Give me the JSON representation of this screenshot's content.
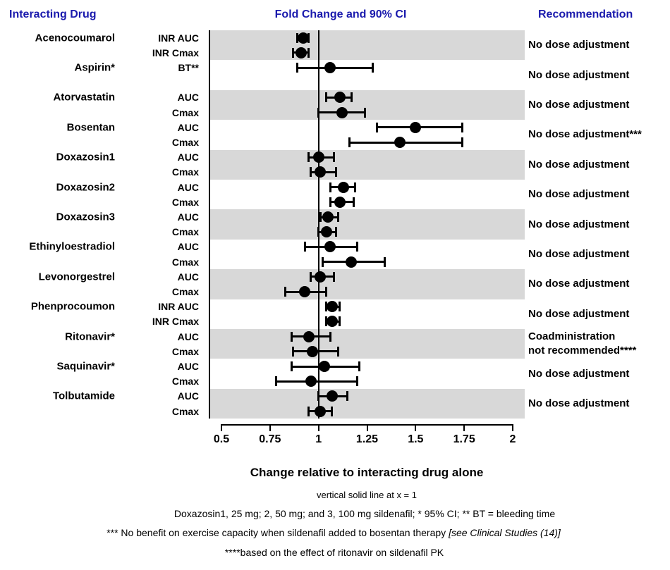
{
  "header": {
    "col_interacting_drug": "Interacting Drug",
    "col_fold_change": "Fold Change and 90% CI",
    "col_recommendation": "Recommendation"
  },
  "colors": {
    "header_blue": "#1a1aad",
    "band_gray": "#d8d8d8",
    "band_white": "#ffffff",
    "marker_black": "#000000"
  },
  "chart_data": {
    "type": "forest",
    "title": "Fold Change and 90% CI",
    "xlabel": "Change relative to interacting drug alone",
    "x_axis": {
      "range": [
        0.5,
        2
      ],
      "ticks": [
        0.5,
        0.75,
        1,
        1.25,
        1.5,
        1.75,
        2
      ],
      "tick_labels": [
        "0.5",
        "0.75",
        "1",
        "1.25",
        "1.5",
        "1.75",
        "2"
      ],
      "reference_line_x": 1
    },
    "groups": [
      {
        "drug": "Acenocoumarol",
        "recommendation": "No dose adjustment",
        "rows": [
          {
            "measure": "INR AUC",
            "est": 0.92,
            "lo": 0.89,
            "hi": 0.95
          },
          {
            "measure": "INR Cmax",
            "est": 0.91,
            "lo": 0.87,
            "hi": 0.95
          }
        ]
      },
      {
        "drug": "Aspirin*",
        "recommendation": "No dose adjustment",
        "rows": [
          {
            "measure": "BT**",
            "est": 1.06,
            "lo": 0.89,
            "hi": 1.28
          }
        ]
      },
      {
        "drug": "Atorvastatin",
        "recommendation": "No dose adjustment",
        "rows": [
          {
            "measure": "AUC",
            "est": 1.11,
            "lo": 1.04,
            "hi": 1.17
          },
          {
            "measure": "Cmax",
            "est": 1.12,
            "lo": 1.0,
            "hi": 1.24
          }
        ]
      },
      {
        "drug": "Bosentan",
        "recommendation": "No dose adjustment***",
        "rows": [
          {
            "measure": "AUC",
            "est": 1.5,
            "lo": 1.3,
            "hi": 1.74
          },
          {
            "measure": "Cmax",
            "est": 1.42,
            "lo": 1.16,
            "hi": 1.74
          }
        ]
      },
      {
        "drug": "Doxazosin1",
        "recommendation": "No dose adjustment",
        "rows": [
          {
            "measure": "AUC",
            "est": 1.0,
            "lo": 0.95,
            "hi": 1.08
          },
          {
            "measure": "Cmax",
            "est": 1.01,
            "lo": 0.96,
            "hi": 1.09
          }
        ]
      },
      {
        "drug": "Doxazosin2",
        "recommendation": "No dose adjustment",
        "rows": [
          {
            "measure": "AUC",
            "est": 1.13,
            "lo": 1.06,
            "hi": 1.19
          },
          {
            "measure": "Cmax",
            "est": 1.11,
            "lo": 1.06,
            "hi": 1.18
          }
        ]
      },
      {
        "drug": "Doxazosin3",
        "recommendation": "No dose adjustment",
        "rows": [
          {
            "measure": "AUC",
            "est": 1.05,
            "lo": 1.01,
            "hi": 1.1
          },
          {
            "measure": "Cmax",
            "est": 1.04,
            "lo": 1.0,
            "hi": 1.09
          }
        ]
      },
      {
        "drug": "Ethinyloestradiol",
        "recommendation": "No dose adjustment",
        "rows": [
          {
            "measure": "AUC",
            "est": 1.06,
            "lo": 0.93,
            "hi": 1.2
          },
          {
            "measure": "Cmax",
            "est": 1.17,
            "lo": 1.02,
            "hi": 1.34
          }
        ]
      },
      {
        "drug": "Levonorgestrel",
        "recommendation": "No dose adjustment",
        "rows": [
          {
            "measure": "AUC",
            "est": 1.01,
            "lo": 0.96,
            "hi": 1.08
          },
          {
            "measure": "Cmax",
            "est": 0.93,
            "lo": 0.83,
            "hi": 1.04
          }
        ]
      },
      {
        "drug": "Phenprocoumon",
        "recommendation": "No dose adjustment",
        "rows": [
          {
            "measure": "INR AUC",
            "est": 1.07,
            "lo": 1.04,
            "hi": 1.11
          },
          {
            "measure": "INR Cmax",
            "est": 1.07,
            "lo": 1.04,
            "hi": 1.11
          }
        ]
      },
      {
        "drug": "Ritonavir*",
        "recommendation": "Coadministration\nnot recommended****",
        "rows": [
          {
            "measure": "AUC",
            "est": 0.95,
            "lo": 0.86,
            "hi": 1.06
          },
          {
            "measure": "Cmax",
            "est": 0.97,
            "lo": 0.87,
            "hi": 1.1
          }
        ]
      },
      {
        "drug": "Saquinavir*",
        "recommendation": "No dose adjustment",
        "rows": [
          {
            "measure": "AUC",
            "est": 1.03,
            "lo": 0.86,
            "hi": 1.21
          },
          {
            "measure": "Cmax",
            "est": 0.96,
            "lo": 0.78,
            "hi": 1.2
          }
        ]
      },
      {
        "drug": "Tolbutamide",
        "recommendation": "No dose adjustment",
        "rows": [
          {
            "measure": "AUC",
            "est": 1.07,
            "lo": 1.0,
            "hi": 1.15
          },
          {
            "measure": "Cmax",
            "est": 1.01,
            "lo": 0.95,
            "hi": 1.07
          }
        ]
      }
    ]
  },
  "footnotes": {
    "xlabel": "Change relative to interacting drug alone",
    "note1": "vertical solid line at x = 1",
    "note2": "Doxazosin1, 25 mg; 2, 50 mg; and 3, 100 mg sildenafil; * 95% CI; ** BT = bleeding time",
    "note3_normal": "*** No benefit on exercise capacity when sildenafil added to bosentan therapy  ",
    "note3_italic": "[see Clinical Studies (14)]",
    "note4": "****based on the effect of ritonavir on sildenafil PK"
  }
}
